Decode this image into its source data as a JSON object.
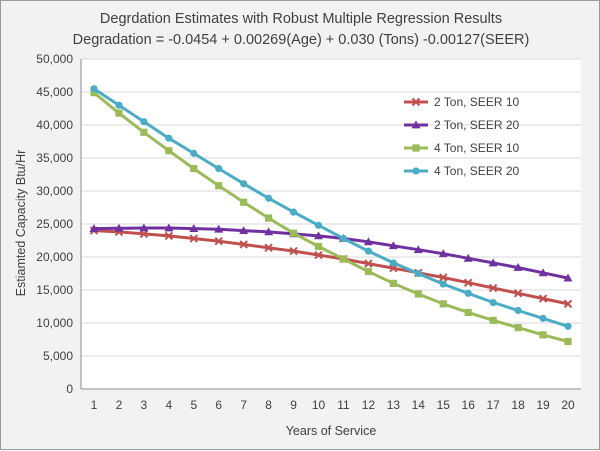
{
  "chart_data": {
    "type": "line",
    "title": "Degrdation Estimates with Robust Multiple Regression Results",
    "subtitle": "Degradation = -0.0454 + 0.00269(Age) + 0.030 (Tons) -0.00127(SEER)",
    "xlabel": "Years of Service",
    "ylabel": "Estiamted Capacity Btu/Hr",
    "x": [
      1,
      2,
      3,
      4,
      5,
      6,
      7,
      8,
      9,
      10,
      11,
      12,
      13,
      14,
      15,
      16,
      17,
      18,
      19,
      20
    ],
    "xlim": [
      1,
      20
    ],
    "ylim": [
      0,
      50000
    ],
    "yticks": [
      0,
      5000,
      10000,
      15000,
      20000,
      25000,
      30000,
      35000,
      40000,
      45000,
      50000
    ],
    "ytick_labels": [
      "0",
      "5,000",
      "10,000",
      "15,000",
      "20,000",
      "25,000",
      "30,000",
      "35,000",
      "40,000",
      "45,000",
      "50,000"
    ],
    "grid": "horizontal",
    "legend_position": "right",
    "series": [
      {
        "name": "2 Ton, SEER 10",
        "color": "#c0504d",
        "marker": "x",
        "values": [
          24000,
          23800,
          23500,
          23200,
          22800,
          22400,
          21900,
          21400,
          20900,
          20300,
          19700,
          19000,
          18300,
          17600,
          16900,
          16100,
          15300,
          14500,
          13700,
          12900
        ]
      },
      {
        "name": "2 Ton, SEER 20",
        "color": "#7030a0",
        "marker": "triangle",
        "values": [
          24300,
          24350,
          24400,
          24400,
          24300,
          24200,
          24000,
          23800,
          23500,
          23200,
          22800,
          22300,
          21700,
          21100,
          20500,
          19800,
          19100,
          18400,
          17600,
          16800
        ]
      },
      {
        "name": "4 Ton, SEER 10",
        "color": "#9bbb59",
        "marker": "square",
        "values": [
          44900,
          41800,
          38900,
          36100,
          33400,
          30800,
          28300,
          25900,
          23600,
          21600,
          19700,
          17800,
          16000,
          14400,
          12900,
          11600,
          10400,
          9300,
          8200,
          7200
        ]
      },
      {
        "name": "4 Ton, SEER 20",
        "color": "#4bacc6",
        "marker": "circle",
        "values": [
          45500,
          43000,
          40500,
          38000,
          35700,
          33400,
          31100,
          28900,
          26800,
          24800,
          22800,
          20900,
          19100,
          17500,
          15900,
          14500,
          13100,
          11900,
          10700,
          9500
        ]
      }
    ]
  }
}
